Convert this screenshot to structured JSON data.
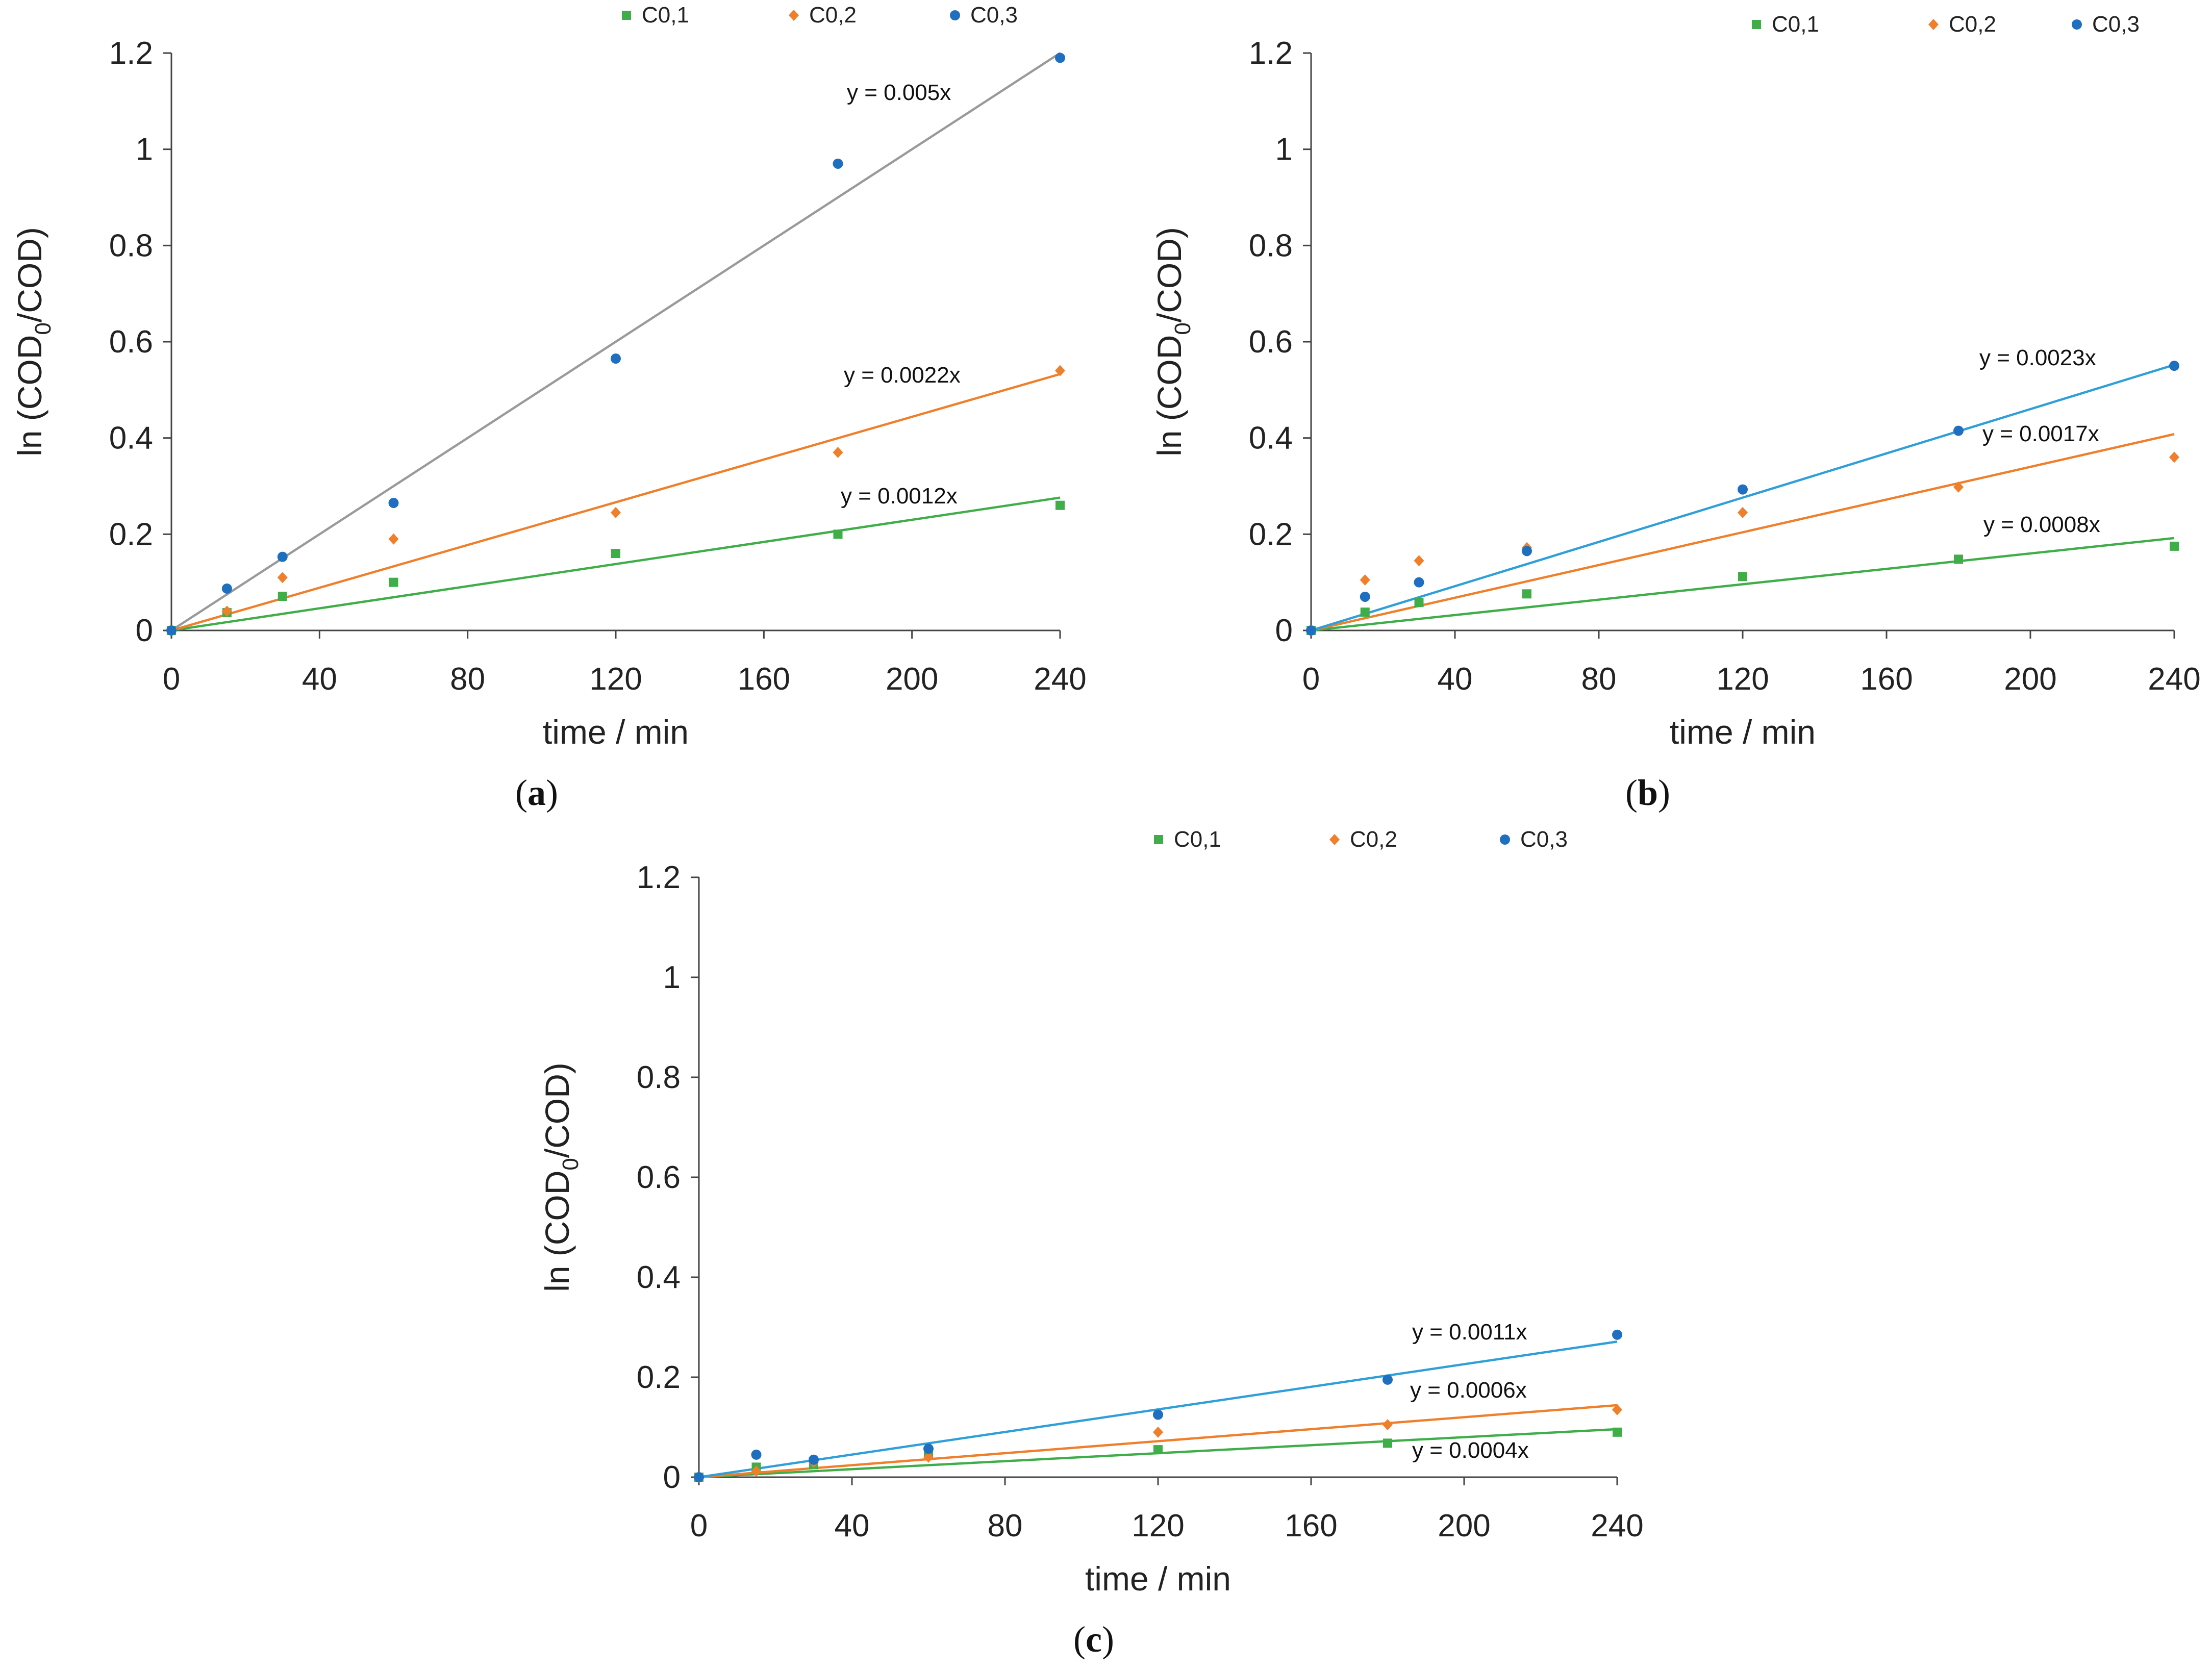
{
  "chart_data": [
    {
      "type": "scatter",
      "panel_label": "a",
      "xlabel": "time / min",
      "ylabel": {
        "prefix": "ln (COD",
        "subscript": "0",
        "suffix": "/COD)"
      },
      "xlim": [
        0,
        240
      ],
      "ylim": [
        0,
        1.2
      ],
      "xticks": [
        "0",
        "40",
        "80",
        "120",
        "160",
        "200",
        "240"
      ],
      "yticks": [
        "0",
        "0.2",
        "0.4",
        "0.6",
        "0.8",
        "1",
        "1.2"
      ],
      "legend_position": "top",
      "series": [
        {
          "name": "C0,1",
          "marker": "square",
          "color": "#3fae49",
          "line_color": "#3fae49",
          "x": [
            0,
            15,
            30,
            60,
            120,
            180,
            240
          ],
          "y": [
            0,
            0.037,
            0.071,
            0.1,
            0.16,
            0.2,
            0.26
          ],
          "fit": {
            "slope": 0.00115,
            "label": "y = 0.0012x"
          }
        },
        {
          "name": "C0,2",
          "marker": "diamond",
          "color": "#f07f2b",
          "line_color": "#f07f2b",
          "x": [
            0,
            15,
            30,
            60,
            120,
            180,
            240
          ],
          "y": [
            0,
            0.04,
            0.11,
            0.19,
            0.245,
            0.37,
            0.54
          ],
          "fit": {
            "slope": 0.00222,
            "label": "y = 0.0022x"
          }
        },
        {
          "name": "C0,3",
          "marker": "circle",
          "color": "#1f6fc0",
          "line_color": "#9a9a9a",
          "x": [
            0,
            15,
            30,
            60,
            120,
            180,
            240
          ],
          "y": [
            0,
            0.087,
            0.153,
            0.265,
            0.565,
            0.97,
            1.19
          ],
          "fit": {
            "slope": 0.005,
            "label": "y = 0.005x"
          }
        }
      ]
    },
    {
      "type": "scatter",
      "panel_label": "b",
      "xlabel": "time / min",
      "ylabel": {
        "prefix": "ln (COD",
        "subscript": "0",
        "suffix": "/COD)"
      },
      "xlim": [
        0,
        240
      ],
      "ylim": [
        0,
        1.2
      ],
      "xticks": [
        "0",
        "40",
        "80",
        "120",
        "160",
        "200",
        "240"
      ],
      "yticks": [
        "0",
        "0.2",
        "0.4",
        "0.6",
        "0.8",
        "1",
        "1.2"
      ],
      "legend_position": "top-right",
      "series": [
        {
          "name": "C0,1",
          "marker": "square",
          "color": "#3fae49",
          "line_color": "#3fae49",
          "x": [
            0,
            15,
            30,
            60,
            120,
            180,
            240
          ],
          "y": [
            0,
            0.038,
            0.058,
            0.076,
            0.112,
            0.148,
            0.175
          ],
          "fit": {
            "slope": 0.0008,
            "label": "y = 0.0008x"
          }
        },
        {
          "name": "C0,2",
          "marker": "diamond",
          "color": "#f07f2b",
          "line_color": "#f07f2b",
          "x": [
            0,
            15,
            30,
            60,
            120,
            180,
            240
          ],
          "y": [
            0,
            0.105,
            0.145,
            0.172,
            0.245,
            0.298,
            0.36
          ],
          "fit": {
            "slope": 0.0017,
            "label": "y = 0.0017x"
          }
        },
        {
          "name": "C0,3",
          "marker": "circle",
          "color": "#1f6fc0",
          "line_color": "#2f9fd9",
          "x": [
            0,
            15,
            30,
            60,
            120,
            180,
            240
          ],
          "y": [
            0,
            0.07,
            0.1,
            0.165,
            0.293,
            0.415,
            0.55
          ],
          "fit": {
            "slope": 0.0023,
            "label": "y = 0.0023x"
          }
        }
      ]
    },
    {
      "type": "scatter",
      "panel_label": "c",
      "xlabel": "time / min",
      "ylabel": {
        "prefix": "ln (COD",
        "subscript": "0",
        "suffix": "/COD)"
      },
      "xlim": [
        0,
        240
      ],
      "ylim": [
        0,
        1.2
      ],
      "xticks": [
        "0",
        "40",
        "80",
        "120",
        "160",
        "200",
        "240"
      ],
      "yticks": [
        "0",
        "0.2",
        "0.4",
        "0.6",
        "0.8",
        "1",
        "1.2"
      ],
      "legend_position": "top",
      "series": [
        {
          "name": "C0,1",
          "marker": "square",
          "color": "#3fae49",
          "line_color": "#3fae49",
          "x": [
            0,
            15,
            30,
            60,
            120,
            180,
            240
          ],
          "y": [
            0,
            0.02,
            0.025,
            0.05,
            0.055,
            0.068,
            0.09
          ],
          "fit": {
            "slope": 0.0004,
            "label": "y = 0.0004x"
          }
        },
        {
          "name": "C0,2",
          "marker": "diamond",
          "color": "#f07f2b",
          "line_color": "#f07f2b",
          "x": [
            0,
            15,
            30,
            60,
            120,
            180,
            240
          ],
          "y": [
            0,
            0.012,
            0.03,
            0.04,
            0.09,
            0.105,
            0.135
          ],
          "fit": {
            "slope": 0.0006,
            "label": "y = 0.0006x"
          }
        },
        {
          "name": "C0,3",
          "marker": "circle",
          "color": "#1f6fc0",
          "line_color": "#2f9fd9",
          "x": [
            0,
            15,
            30,
            60,
            120,
            180,
            240
          ],
          "y": [
            0,
            0.045,
            0.035,
            0.057,
            0.125,
            0.195,
            0.285
          ],
          "fit": {
            "slope": 0.00113,
            "label": "y = 0.0011x"
          }
        }
      ]
    }
  ]
}
